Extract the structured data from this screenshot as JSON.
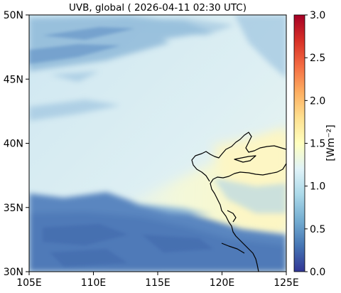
{
  "title": "UVB, global ( 2026-04-11 02:30 UTC)",
  "map": {
    "lon_ticks": [
      "105E",
      "110E",
      "115E",
      "120E",
      "125E"
    ],
    "lat_ticks": [
      "50N",
      "45N",
      "40N",
      "35N",
      "30N"
    ],
    "lon_range": [
      105,
      125
    ],
    "lat_range": [
      30,
      50
    ]
  },
  "colorbar": {
    "label": "[Wm⁻²]",
    "ticks": [
      "0.0",
      "0.5",
      "1.0",
      "1.5",
      "2.0",
      "2.5",
      "3.0"
    ],
    "range": [
      0,
      3
    ],
    "colors": [
      "#313695",
      "#4575b4",
      "#74add1",
      "#abd9e9",
      "#e0f3f8",
      "#ffffbf",
      "#fee090",
      "#fdae61",
      "#f46d43",
      "#d73027",
      "#a50026"
    ]
  }
}
